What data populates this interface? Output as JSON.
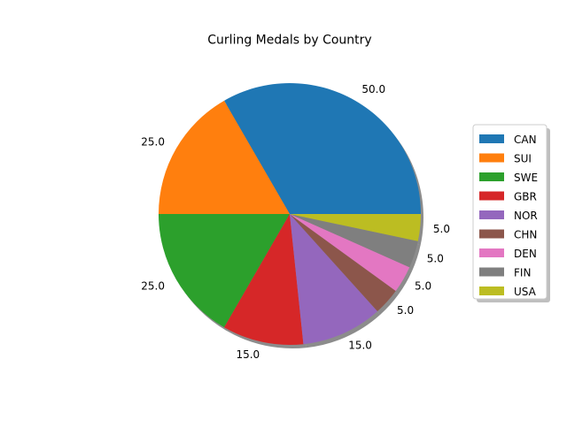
{
  "chart_data": {
    "type": "pie",
    "title": "Curling Medals by Country",
    "categories": [
      "CAN",
      "SUI",
      "SWE",
      "GBR",
      "NOR",
      "CHN",
      "DEN",
      "FIN",
      "USA"
    ],
    "values": [
      50,
      25,
      25,
      15,
      15,
      5,
      5,
      5,
      5
    ],
    "value_labels": [
      "50.0",
      "25.0",
      "25.0",
      "15.0",
      "15.0",
      "5.0",
      "5.0",
      "5.0",
      "5.0"
    ],
    "colors": [
      "#1f77b4",
      "#ff7f0e",
      "#2ca02c",
      "#d62728",
      "#9467bd",
      "#8c564b",
      "#e377c2",
      "#7f7f7f",
      "#bcbd22"
    ],
    "shadow": true,
    "legend_position": "right",
    "legend_shadow": true
  }
}
